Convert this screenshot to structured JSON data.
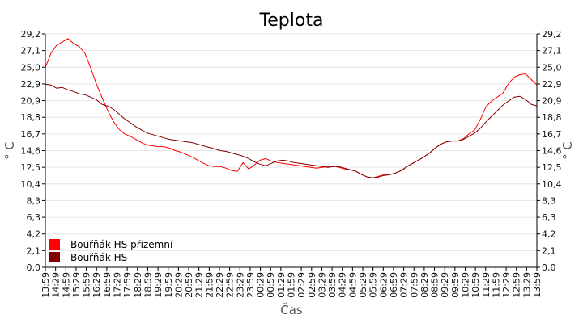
{
  "chart_data": {
    "type": "line",
    "title": "Teplota",
    "xlabel": "Čas",
    "ylabel": "° C",
    "ylim": [
      0,
      29.2
    ],
    "yticks": [
      "0,0",
      "2,1",
      "4,2",
      "6,3",
      "8,3",
      "10,4",
      "12,5",
      "14,6",
      "16,7",
      "18,8",
      "20,9",
      "22,9",
      "25,0",
      "27,1",
      "29,2"
    ],
    "x_ticks": [
      "13:59",
      "14:29",
      "14:59",
      "15:29",
      "15:59",
      "16:29",
      "16:59",
      "17:29",
      "17:59",
      "18:29",
      "18:59",
      "19:29",
      "19:59",
      "20:29",
      "20:59",
      "21:29",
      "21:59",
      "22:29",
      "22:59",
      "23:29",
      "23:59",
      "00:29",
      "00:59",
      "01:29",
      "01:59",
      "02:29",
      "02:59",
      "03:29",
      "03:59",
      "04:29",
      "04:59",
      "05:29",
      "05:59",
      "06:29",
      "06:59",
      "07:29",
      "07:59",
      "08:29",
      "08:59",
      "09:29",
      "09:59",
      "10:29",
      "10:59",
      "11:29",
      "11:59",
      "12:29",
      "12:59",
      "13:29",
      "13:59"
    ],
    "grid": true,
    "legend_position": "bottom-left",
    "series": [
      {
        "name": "Bouřňák HS přízemní",
        "color": "#ff0000",
        "values": [
          25.0,
          26.8,
          27.8,
          28.2,
          28.6,
          28.0,
          27.6,
          26.8,
          25.0,
          23.0,
          21.3,
          19.7,
          18.3,
          17.3,
          16.7,
          16.4,
          16.0,
          15.6,
          15.3,
          15.2,
          15.1,
          15.1,
          14.9,
          14.6,
          14.4,
          14.1,
          13.8,
          13.4,
          13.0,
          12.7,
          12.6,
          12.6,
          12.4,
          12.1,
          12.0,
          13.1,
          12.3,
          12.8,
          13.4,
          13.6,
          13.3,
          13.1,
          13.0,
          12.9,
          12.8,
          12.7,
          12.6,
          12.5,
          12.4,
          12.5,
          12.6,
          12.7,
          12.5,
          12.3,
          12.2,
          12.0,
          11.6,
          11.3,
          11.2,
          11.4,
          11.6,
          11.6,
          11.8,
          12.1,
          12.6,
          13.0,
          13.4,
          13.8,
          14.3,
          14.9,
          15.4,
          15.7,
          15.8,
          15.8,
          16.1,
          16.7,
          17.2,
          18.5,
          20.1,
          20.8,
          21.3,
          21.8,
          23.0,
          23.8,
          24.1,
          24.2,
          23.5,
          22.8
        ]
      },
      {
        "name": "Bouřňák HS",
        "color": "#800000",
        "values": [
          22.9,
          22.8,
          22.4,
          22.5,
          22.2,
          22.0,
          21.7,
          21.6,
          21.3,
          21.0,
          20.4,
          20.2,
          19.8,
          19.2,
          18.6,
          18.1,
          17.6,
          17.2,
          16.8,
          16.6,
          16.4,
          16.2,
          16.0,
          15.9,
          15.8,
          15.7,
          15.6,
          15.4,
          15.2,
          15.0,
          14.8,
          14.6,
          14.5,
          14.3,
          14.1,
          13.9,
          13.6,
          13.2,
          12.9,
          12.7,
          13.0,
          13.3,
          13.4,
          13.3,
          13.1,
          13.0,
          12.9,
          12.8,
          12.7,
          12.6,
          12.5,
          12.6,
          12.6,
          12.4,
          12.2,
          12.0,
          11.6,
          11.3,
          11.2,
          11.3,
          11.5,
          11.6,
          11.8,
          12.1,
          12.6,
          13.0,
          13.4,
          13.8,
          14.3,
          14.9,
          15.4,
          15.7,
          15.8,
          15.8,
          16.0,
          16.4,
          16.8,
          17.4,
          18.2,
          18.9,
          19.6,
          20.3,
          20.8,
          21.3,
          21.4,
          21.0,
          20.4,
          20.2
        ]
      }
    ]
  }
}
